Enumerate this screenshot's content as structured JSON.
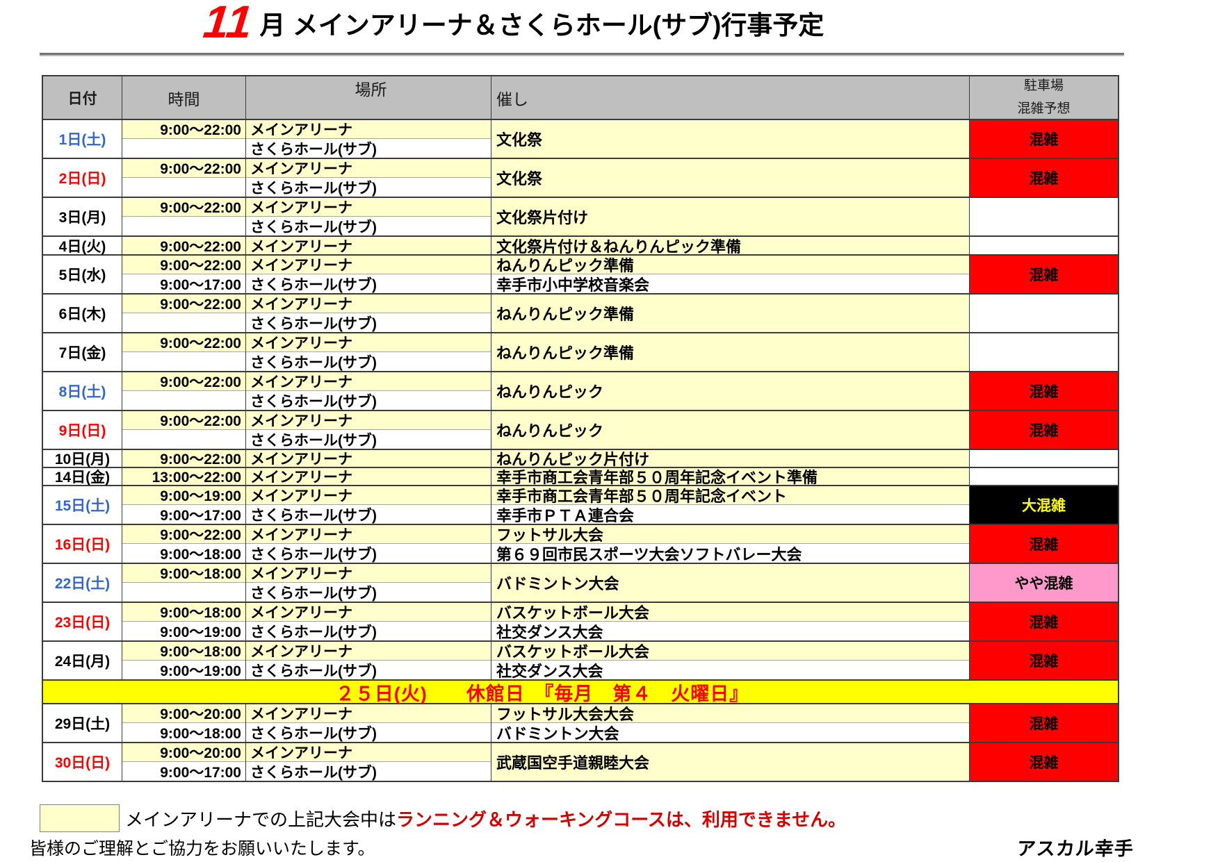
{
  "title": {
    "month": "11",
    "text": "月 メインアリーナ＆さくらホール(サブ)行事予定"
  },
  "table": {
    "headers": {
      "date": "日付",
      "time": "時間",
      "place": "場所",
      "event": "催し",
      "parking1": "駐車場",
      "parking2": "混雑予想"
    },
    "closed_banner": "２５日(火)　　休館日　『毎月　第４　火曜日』",
    "rows": [
      {
        "date": "1日(土)",
        "lines": [
          {
            "time": "9:00～22:00",
            "place": "メインアリーナ"
          },
          {
            "time": "",
            "place": "さくらホール(サブ)"
          }
        ],
        "events": [
          "文化祭"
        ],
        "parking": "混雑"
      },
      {
        "date": "2日(日)",
        "lines": [
          {
            "time": "9:00～22:00",
            "place": "メインアリーナ"
          },
          {
            "time": "",
            "place": "さくらホール(サブ)"
          }
        ],
        "events": [
          "文化祭"
        ],
        "parking": "混雑"
      },
      {
        "date": "3日(月)",
        "lines": [
          {
            "time": "9:00～22:00",
            "place": "メインアリーナ"
          },
          {
            "time": "",
            "place": "さくらホール(サブ)"
          }
        ],
        "events": [
          "文化祭片付け"
        ],
        "parking": ""
      },
      {
        "date": "4日(火)",
        "lines": [
          {
            "time": "9:00～22:00",
            "place": "メインアリーナ"
          }
        ],
        "events": [
          "文化祭片付け＆ねんりんピック準備"
        ],
        "parking": ""
      },
      {
        "date": "5日(水)",
        "lines": [
          {
            "time": "9:00～22:00",
            "place": "メインアリーナ"
          },
          {
            "time": "9:00～17:00",
            "place": "さくらホール(サブ)"
          }
        ],
        "events": [
          "ねんりんピック準備",
          "幸手市小中学校音楽会"
        ],
        "parking": "混雑"
      },
      {
        "date": "6日(木)",
        "lines": [
          {
            "time": "9:00～22:00",
            "place": "メインアリーナ"
          },
          {
            "time": "",
            "place": "さくらホール(サブ)"
          }
        ],
        "events": [
          "ねんりんピック準備"
        ],
        "parking": ""
      },
      {
        "date": "7日(金)",
        "lines": [
          {
            "time": "9:00～22:00",
            "place": "メインアリーナ"
          },
          {
            "time": "",
            "place": "さくらホール(サブ)"
          }
        ],
        "events": [
          "ねんりんピック準備"
        ],
        "parking": ""
      },
      {
        "date": "8日(土)",
        "lines": [
          {
            "time": "9:00～22:00",
            "place": "メインアリーナ"
          },
          {
            "time": "",
            "place": "さくらホール(サブ)"
          }
        ],
        "events": [
          "ねんりんピック"
        ],
        "parking": "混雑"
      },
      {
        "date": "9日(日)",
        "lines": [
          {
            "time": "9:00～22:00",
            "place": "メインアリーナ"
          },
          {
            "time": "",
            "place": "さくらホール(サブ)"
          }
        ],
        "events": [
          "ねんりんピック"
        ],
        "parking": "混雑"
      },
      {
        "date": "10日(月)",
        "lines": [
          {
            "time": "9:00～22:00",
            "place": "メインアリーナ"
          }
        ],
        "events": [
          "ねんりんピック片付け"
        ],
        "parking": ""
      },
      {
        "date": "14日(金)",
        "lines": [
          {
            "time": "13:00～22:00",
            "place": "メインアリーナ"
          }
        ],
        "events": [
          "幸手市商工会青年部５０周年記念イベント準備"
        ],
        "parking": ""
      },
      {
        "date": "15日(土)",
        "lines": [
          {
            "time": "9:00～19:00",
            "place": "メインアリーナ"
          },
          {
            "time": "9:00～17:00",
            "place": "さくらホール(サブ)"
          }
        ],
        "events": [
          "幸手市商工会青年部５０周年記念イベント",
          "幸手市ＰＴＡ連合会"
        ],
        "parking": "大混雑"
      },
      {
        "date": "16日(日)",
        "lines": [
          {
            "time": "9:00～22:00",
            "place": "メインアリーナ"
          },
          {
            "time": "9:00～18:00",
            "place": "さくらホール(サブ)"
          }
        ],
        "events": [
          "フットサル大会",
          "第６９回市民スポーツ大会ソフトバレー大会"
        ],
        "parking": "混雑"
      },
      {
        "date": "22日(土)",
        "lines": [
          {
            "time": "9:00～18:00",
            "place": "メインアリーナ"
          },
          {
            "time": "",
            "place": "さくらホール(サブ)"
          }
        ],
        "events": [
          "バドミントン大会"
        ],
        "parking": "やや混雑"
      },
      {
        "date": "23日(日)",
        "lines": [
          {
            "time": "9:00～18:00",
            "place": "メインアリーナ"
          },
          {
            "time": "9:00～19:00",
            "place": "さくらホール(サブ)"
          }
        ],
        "events": [
          "バスケットボール大会",
          "社交ダンス大会"
        ],
        "parking": "混雑"
      },
      {
        "date": "24日(月)",
        "lines": [
          {
            "time": "9:00～18:00",
            "place": "メインアリーナ"
          },
          {
            "time": "9:00～19:00",
            "place": "さくらホール(サブ)"
          }
        ],
        "events": [
          "バスケットボール大会",
          "社交ダンス大会"
        ],
        "parking": "混雑"
      },
      {
        "date": "29日(土)",
        "lines": [
          {
            "time": "9:00～20:00",
            "place": "メインアリーナ"
          },
          {
            "time": "9:00～18:00",
            "place": "さくらホール(サブ)"
          }
        ],
        "events": [
          "フットサル大会大会",
          "バドミントン大会"
        ],
        "parking": "混雑"
      },
      {
        "date": "30日(日)",
        "lines": [
          {
            "time": "9:00～20:00",
            "place": "メインアリーナ"
          },
          {
            "time": "9:00～17:00",
            "place": "さくらホール(サブ)"
          }
        ],
        "events": [
          "武蔵国空手道親睦大会"
        ],
        "parking": "混雑"
      }
    ]
  },
  "footer": {
    "note_black": "メインアリーナでの上記大会中は",
    "note_red": "ランニング＆ウォーキングコースは、利用できません。",
    "note_line2": "皆様のご理解とご協力をお願いいたします。",
    "logo": "アスカル幸手"
  },
  "colors": {
    "header_bg": "#BFBFBF",
    "cell_yellow": "#FFFFCC",
    "banner_yellow": "#FFFF00",
    "busy_bg": "#FF0000",
    "very_busy_bg": "#000000",
    "very_busy_text": "#FFFF00",
    "slightly_busy_bg": "#FF99CC",
    "date_saturday_blue": "#3366CC",
    "date_sunday_red": "#FF0000",
    "title_month_red": "#FF0000",
    "footer_note_red": "#D40000"
  }
}
